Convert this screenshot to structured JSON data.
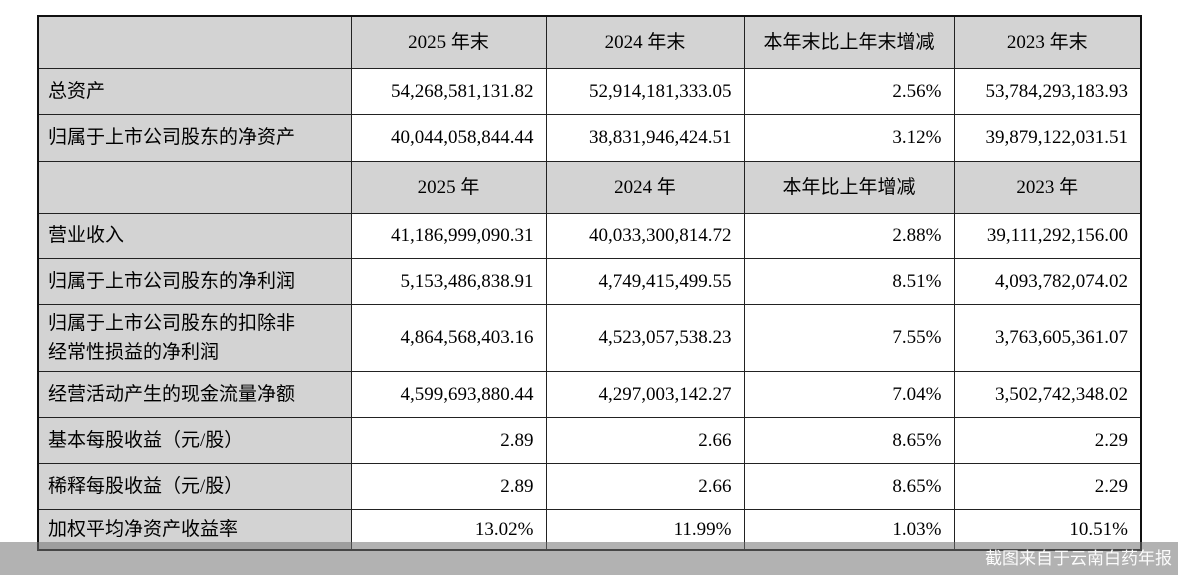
{
  "colors": {
    "cell-fill": "#d3d3d3",
    "grid-line": "#222222",
    "outer-line": "#111111",
    "watermark-fg": "#fbfbfb"
  },
  "watermark": {
    "label": "截图来自于云南白药年报"
  },
  "table": {
    "sections": [
      {
        "header": [
          "2025 年末",
          "2024 年末",
          "本年末比上年末增减",
          "2023 年末"
        ],
        "rows": [
          {
            "label": "总资产",
            "values": [
              "54,268,581,131.82",
              "52,914,181,333.05",
              "2.56%",
              "53,784,293,183.93"
            ]
          },
          {
            "label": "归属于上市公司股东的净资产",
            "values": [
              "40,044,058,844.44",
              "38,831,946,424.51",
              "3.12%",
              "39,879,122,031.51"
            ]
          }
        ]
      },
      {
        "header": [
          "2025 年",
          "2024 年",
          "本年比上年增减",
          "2023 年"
        ],
        "rows": [
          {
            "label": "营业收入",
            "values": [
              "41,186,999,090.31",
              "40,033,300,814.72",
              "2.88%",
              "39,111,292,156.00"
            ]
          },
          {
            "label": "归属于上市公司股东的净利润",
            "values": [
              "5,153,486,838.91",
              "4,749,415,499.55",
              "8.51%",
              "4,093,782,074.02"
            ]
          },
          {
            "label": "归属于上市公司股东的扣除非经常性损益的净利润",
            "values": [
              "4,864,568,403.16",
              "4,523,057,538.23",
              "7.55%",
              "3,763,605,361.07"
            ]
          },
          {
            "label": "经营活动产生的现金流量净额",
            "values": [
              "4,599,693,880.44",
              "4,297,003,142.27",
              "7.04%",
              "3,502,742,348.02"
            ]
          },
          {
            "label": "基本每股收益（元/股）",
            "values": [
              "2.89",
              "2.66",
              "8.65%",
              "2.29"
            ]
          },
          {
            "label": "稀释每股收益（元/股）",
            "values": [
              "2.89",
              "2.66",
              "8.65%",
              "2.29"
            ]
          },
          {
            "label": "加权平均净资产收益率",
            "values": [
              "13.02%",
              "11.99%",
              "1.03%",
              "10.51%"
            ]
          }
        ]
      }
    ]
  }
}
